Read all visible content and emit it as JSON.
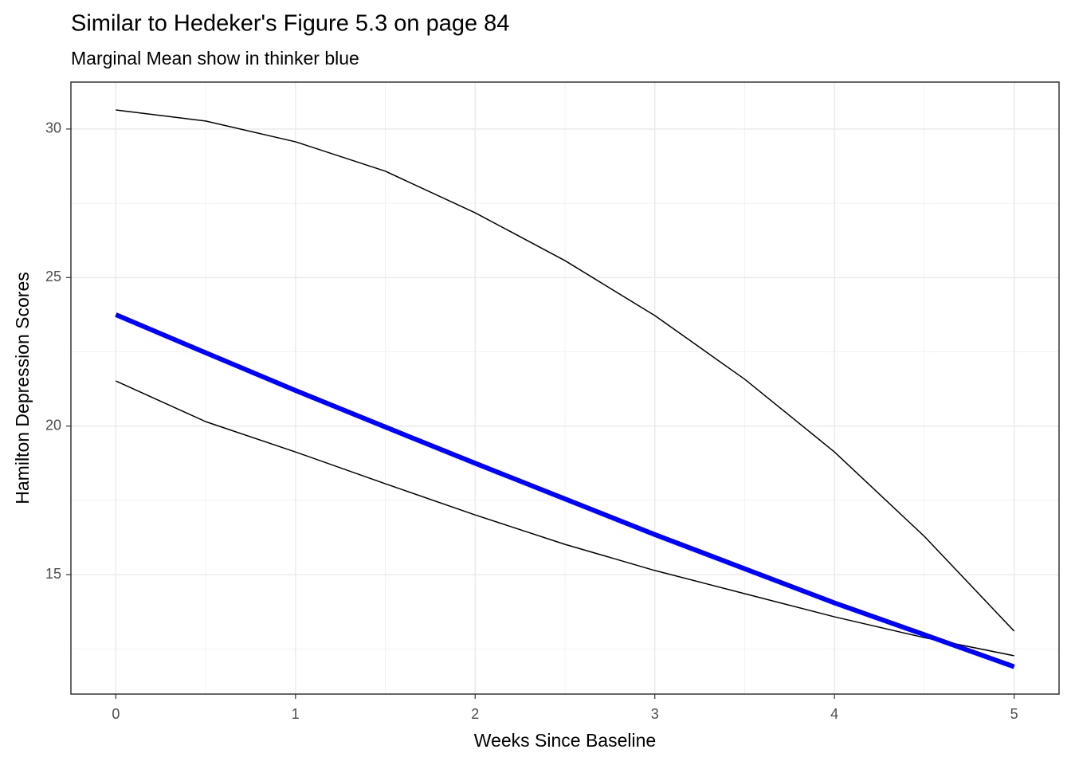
{
  "chart_data": {
    "type": "line",
    "title": "Similar to Hedeker's Figure 5.3 on page 84",
    "subtitle": "Marginal Mean show in thinker blue",
    "x_label": "Weeks Since Baseline",
    "y_label": "Hamilton Depression Scores",
    "x": [
      0,
      0.5,
      1,
      1.5,
      2,
      2.5,
      3,
      3.5,
      4,
      4.5,
      5
    ],
    "series": [
      {
        "color": "#000000",
        "linewidth": 1.5,
        "values": [
          30.64,
          30.27,
          29.57,
          28.58,
          27.18,
          25.57,
          23.72,
          21.58,
          19.13,
          16.29,
          13.1
        ]
      },
      {
        "color": "#000000",
        "linewidth": 1.5,
        "values": [
          21.52,
          20.15,
          19.13,
          18.06,
          17.01,
          16.02,
          15.14,
          14.36,
          13.58,
          12.88,
          12.27
        ]
      },
      {
        "color": "#0000ff",
        "linewidth": 6,
        "values": [
          23.75,
          22.47,
          21.2,
          19.97,
          18.75,
          17.55,
          16.35,
          15.2,
          14.05,
          12.98,
          11.9
        ]
      }
    ],
    "xlim": [
      -0.25,
      5.25
    ],
    "xticks": [
      0,
      1,
      2,
      3,
      4,
      5
    ],
    "ylim": [
      10.98,
      31.58
    ],
    "yticks": [
      15,
      20,
      25,
      30
    ],
    "grid": true,
    "minor_grid": true
  }
}
